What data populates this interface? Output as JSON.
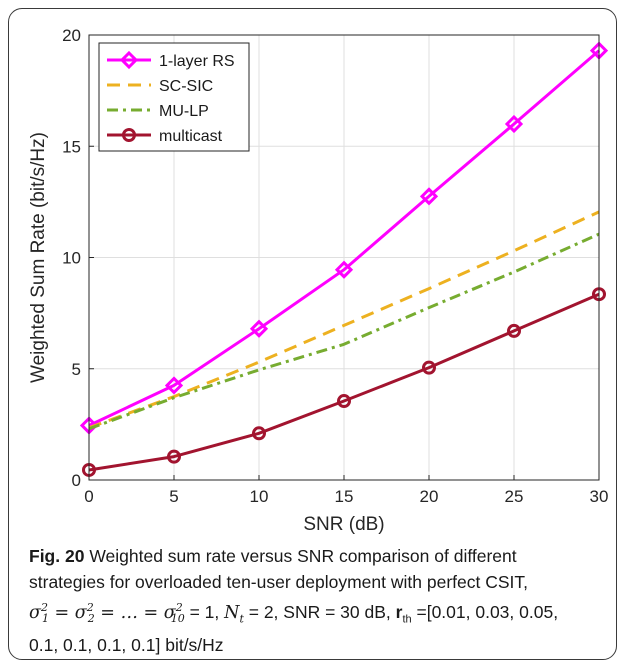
{
  "chart_data": {
    "type": "line",
    "xlabel": "SNR (dB)",
    "ylabel": "Weighted Sum Rate (bit/s/Hz)",
    "xlim": [
      0,
      30
    ],
    "ylim": [
      0,
      20
    ],
    "x_ticks": [
      "0",
      "5",
      "10",
      "15",
      "20",
      "25",
      "30"
    ],
    "y_ticks": [
      "0",
      "5",
      "10",
      "15",
      "20"
    ],
    "grid": true,
    "legend_position": "top-left",
    "x": [
      0,
      5,
      10,
      15,
      20,
      25,
      30
    ],
    "series": [
      {
        "name": "1-layer RS",
        "values": [
          2.45,
          4.25,
          6.8,
          9.45,
          12.75,
          16.0,
          19.3
        ],
        "color": "#ff00ff",
        "style": "solid",
        "marker": "diamond"
      },
      {
        "name": "SC-SIC",
        "values": [
          2.35,
          3.75,
          5.3,
          6.95,
          8.6,
          10.3,
          12.05
        ],
        "color": "#edb120",
        "style": "dashed",
        "marker": "none"
      },
      {
        "name": "MU-LP",
        "values": [
          2.3,
          3.7,
          4.95,
          6.1,
          7.75,
          9.35,
          11.05
        ],
        "color": "#77ac30",
        "style": "dashdot",
        "marker": "none"
      },
      {
        "name": "multicast",
        "values": [
          0.45,
          1.05,
          2.1,
          3.55,
          5.05,
          6.7,
          8.35
        ],
        "color": "#a2142f",
        "style": "solid",
        "marker": "circle"
      }
    ]
  },
  "caption": {
    "fig_label": "Fig. 20",
    "line1": "Weighted sum rate versus SNR comparison of different",
    "line2": "strategies for overloaded ten-user deployment with perfect CSIT,",
    "line3_mid": "= 1, ",
    "line3_nt": "N",
    "line3_nt_sub": "t",
    "line3_rest": " = 2, SNR = 30 dB, ",
    "line3_r": "r",
    "line3_r_sub": "th",
    "line3_vals": " =[0.01, 0.03, 0.05,",
    "line4": "0.1, 0.1, 0.1, 0.1] bit/s/Hz"
  },
  "colors": {
    "axis": "#262626",
    "grid": "#dfdfdf"
  }
}
